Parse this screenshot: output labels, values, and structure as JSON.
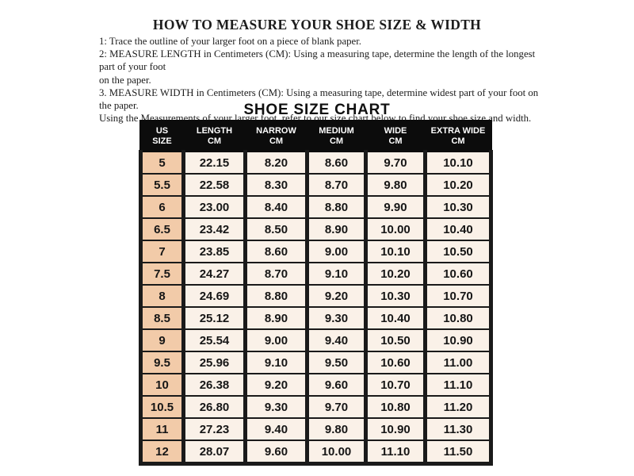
{
  "page": {
    "title": "HOW TO MEASURE YOUR SHOE SIZE & WIDTH",
    "chart_title": "SHOE SIZE CHART"
  },
  "instructions": [
    {
      "lines": [
        "1: Trace the outline of your larger foot on a piece of blank paper."
      ]
    },
    {
      "lines": [
        "2: MEASURE LENGTH in Centimeters (CM): Using a measuring tape, determine the length of the longest part of your foot",
        "on the paper."
      ]
    },
    {
      "lines": [
        "3. MEASURE WIDTH in Centimeters (CM): Using a measuring tape, determine widest part of your foot on the paper.",
        "Using the Measurements of your larger foot, refer to our size chart below to find your shoe size and width."
      ]
    }
  ],
  "size_chart": {
    "headers": [
      [
        "US",
        "SIZE"
      ],
      [
        "LENGTH",
        "CM"
      ],
      [
        "NARROW",
        "CM"
      ],
      [
        "MEDIUM",
        "CM"
      ],
      [
        "WIDE",
        "CM"
      ],
      [
        "EXTRA WIDE",
        "CM"
      ]
    ],
    "rows": [
      [
        "5",
        "22.15",
        "8.20",
        "8.60",
        "9.70",
        "10.10"
      ],
      [
        "5.5",
        "22.58",
        "8.30",
        "8.70",
        "9.80",
        "10.20"
      ],
      [
        "6",
        "23.00",
        "8.40",
        "8.80",
        "9.90",
        "10.30"
      ],
      [
        "6.5",
        "23.42",
        "8.50",
        "8.90",
        "10.00",
        "10.40"
      ],
      [
        "7",
        "23.85",
        "8.60",
        "9.00",
        "10.10",
        "10.50"
      ],
      [
        "7.5",
        "24.27",
        "8.70",
        "9.10",
        "10.20",
        "10.60"
      ],
      [
        "8",
        "24.69",
        "8.80",
        "9.20",
        "10.30",
        "10.70"
      ],
      [
        "8.5",
        "25.12",
        "8.90",
        "9.30",
        "10.40",
        "10.80"
      ],
      [
        "9",
        "25.54",
        "9.00",
        "9.40",
        "10.50",
        "10.90"
      ],
      [
        "9.5",
        "25.96",
        "9.10",
        "9.50",
        "10.60",
        "11.00"
      ],
      [
        "10",
        "26.38",
        "9.20",
        "9.60",
        "10.70",
        "11.10"
      ],
      [
        "10.5",
        "26.80",
        "9.30",
        "9.70",
        "10.80",
        "11.20"
      ],
      [
        "11",
        "27.23",
        "9.40",
        "9.80",
        "10.90",
        "11.30"
      ],
      [
        "12",
        "28.07",
        "9.60",
        "10.00",
        "11.10",
        "11.50"
      ]
    ]
  },
  "colors": {
    "header_bg": "#0c0c0c",
    "header_text": "#ffffff",
    "cell_bg": "#faf1e8",
    "size_col_bg": "#f2cba9",
    "border": "#1a1a1a",
    "text": "#1c1c1c"
  }
}
